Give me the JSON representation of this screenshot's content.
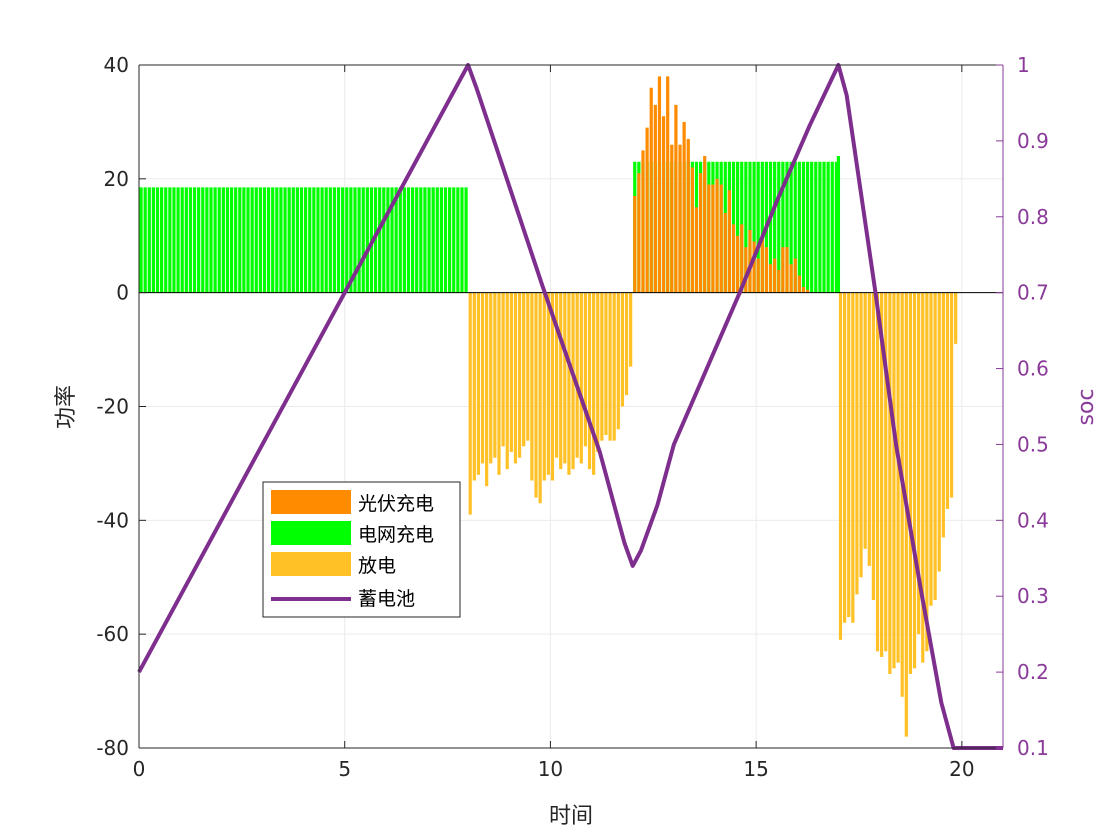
{
  "chart_data": {
    "type": "bar",
    "xlabel": "时间",
    "ylabel": "功率",
    "y2label": "soc",
    "xlim": [
      0,
      21
    ],
    "ylim": [
      -80,
      40
    ],
    "y2lim": [
      0.1,
      1.0
    ],
    "xticks": [
      "0",
      "5",
      "10",
      "15",
      "20"
    ],
    "xtick_values": [
      0,
      5,
      10,
      15,
      20
    ],
    "yticks": [
      "40",
      "20",
      "0",
      "-20",
      "-40",
      "-60",
      "-80"
    ],
    "ytick_values": [
      40,
      20,
      0,
      -20,
      -40,
      -60,
      -80
    ],
    "y2ticks": [
      "1",
      "0.9",
      "0.8",
      "0.7",
      "0.6",
      "0.5",
      "0.4",
      "0.3",
      "0.2",
      "0.1"
    ],
    "y2tick_values": [
      1.0,
      0.9,
      0.8,
      0.7,
      0.6,
      0.5,
      0.4,
      0.3,
      0.2,
      0.1
    ],
    "grid": true,
    "legend_position": "lower-left",
    "legend": [
      {
        "label": "光伏充电",
        "color": "#ff8c00",
        "kind": "bar"
      },
      {
        "label": "电网充电",
        "color": "#00ff00",
        "kind": "bar"
      },
      {
        "label": "放电",
        "color": "#ffc125",
        "kind": "bar"
      },
      {
        "label": "蓄电池",
        "color": "#7e2f8e",
        "kind": "line"
      }
    ],
    "series": [
      {
        "name": "电网充电",
        "color": "#00ff00",
        "segments": [
          {
            "x_start": 0.05,
            "x_end": 7.95,
            "value": 18.5
          },
          {
            "x_start": 12.05,
            "x_end": 16.95,
            "value": 23
          }
        ],
        "extra_points": [
          {
            "x": 17.0,
            "y": 24
          }
        ]
      },
      {
        "name": "光伏充电",
        "color": "#ff8c00",
        "points": [
          [
            12.05,
            17
          ],
          [
            12.15,
            21
          ],
          [
            12.25,
            25
          ],
          [
            12.35,
            29
          ],
          [
            12.45,
            36
          ],
          [
            12.55,
            33
          ],
          [
            12.65,
            38
          ],
          [
            12.75,
            31
          ],
          [
            12.85,
            38
          ],
          [
            12.95,
            26
          ],
          [
            13.05,
            33
          ],
          [
            13.15,
            26
          ],
          [
            13.25,
            30
          ],
          [
            13.35,
            27
          ],
          [
            13.45,
            22
          ],
          [
            13.55,
            15
          ],
          [
            13.65,
            21
          ],
          [
            13.75,
            24
          ],
          [
            13.85,
            19
          ],
          [
            13.95,
            19
          ],
          [
            14.05,
            20
          ],
          [
            14.15,
            19
          ],
          [
            14.25,
            14
          ],
          [
            14.35,
            18
          ],
          [
            14.45,
            12
          ],
          [
            14.55,
            10
          ],
          [
            14.65,
            12
          ],
          [
            14.75,
            8
          ],
          [
            14.85,
            11
          ],
          [
            14.95,
            9
          ],
          [
            15.05,
            6
          ],
          [
            15.15,
            10
          ],
          [
            15.25,
            8
          ],
          [
            15.35,
            5
          ],
          [
            15.45,
            6
          ],
          [
            15.55,
            4
          ],
          [
            15.65,
            8
          ],
          [
            15.75,
            8
          ],
          [
            15.85,
            5
          ],
          [
            15.95,
            6
          ],
          [
            16.05,
            3
          ],
          [
            16.15,
            1
          ],
          [
            16.25,
            0.5
          ]
        ]
      },
      {
        "name": "放电",
        "color": "#ffc125",
        "points": [
          [
            8.05,
            -39
          ],
          [
            8.15,
            -33
          ],
          [
            8.25,
            -32
          ],
          [
            8.35,
            -30
          ],
          [
            8.45,
            -34
          ],
          [
            8.55,
            -30
          ],
          [
            8.65,
            -29
          ],
          [
            8.75,
            -32
          ],
          [
            8.85,
            -27
          ],
          [
            8.95,
            -31
          ],
          [
            9.05,
            -28
          ],
          [
            9.15,
            -30
          ],
          [
            9.25,
            -29
          ],
          [
            9.35,
            -27
          ],
          [
            9.45,
            -26
          ],
          [
            9.55,
            -33
          ],
          [
            9.65,
            -36
          ],
          [
            9.75,
            -37
          ],
          [
            9.85,
            -33
          ],
          [
            9.95,
            -32
          ],
          [
            10.05,
            -33
          ],
          [
            10.15,
            -29
          ],
          [
            10.25,
            -31
          ],
          [
            10.35,
            -30
          ],
          [
            10.45,
            -32
          ],
          [
            10.55,
            -31
          ],
          [
            10.65,
            -29
          ],
          [
            10.75,
            -30
          ],
          [
            10.85,
            -27
          ],
          [
            10.95,
            -31
          ],
          [
            11.05,
            -32
          ],
          [
            11.15,
            -28
          ],
          [
            11.25,
            -26
          ],
          [
            11.35,
            -25
          ],
          [
            11.45,
            -26
          ],
          [
            11.55,
            -26
          ],
          [
            11.65,
            -24
          ],
          [
            11.75,
            -20
          ],
          [
            11.85,
            -18
          ],
          [
            11.95,
            -13
          ]
        ],
        "points_b": [
          [
            17.05,
            -61
          ],
          [
            17.15,
            -58
          ],
          [
            17.25,
            -57
          ],
          [
            17.35,
            -58
          ],
          [
            17.45,
            -53
          ],
          [
            17.55,
            -50
          ],
          [
            17.65,
            -45
          ],
          [
            17.75,
            -48
          ],
          [
            17.85,
            -54
          ],
          [
            17.95,
            -63
          ],
          [
            18.05,
            -64
          ],
          [
            18.15,
            -63
          ],
          [
            18.25,
            -67
          ],
          [
            18.35,
            -66
          ],
          [
            18.45,
            -65
          ],
          [
            18.55,
            -71
          ],
          [
            18.65,
            -78
          ],
          [
            18.75,
            -67
          ],
          [
            18.85,
            -66
          ],
          [
            18.95,
            -60
          ],
          [
            19.05,
            -65
          ],
          [
            19.15,
            -63
          ],
          [
            19.25,
            -55
          ],
          [
            19.35,
            -54
          ],
          [
            19.45,
            -49
          ],
          [
            19.55,
            -43
          ],
          [
            19.65,
            -38
          ],
          [
            19.75,
            -36
          ],
          [
            19.85,
            -9
          ]
        ]
      },
      {
        "name": "蓄电池",
        "color": "#7e2f8e",
        "axis": "right",
        "points": [
          [
            0,
            0.2
          ],
          [
            8,
            1.0
          ],
          [
            8.2,
            0.97
          ],
          [
            9.0,
            0.84
          ],
          [
            9.8,
            0.71
          ],
          [
            10.5,
            0.6
          ],
          [
            11.2,
            0.49
          ],
          [
            11.8,
            0.37
          ],
          [
            12.0,
            0.34
          ],
          [
            12.2,
            0.36
          ],
          [
            12.6,
            0.42
          ],
          [
            13.0,
            0.5
          ],
          [
            13.8,
            0.6
          ],
          [
            14.6,
            0.7
          ],
          [
            15.5,
            0.82
          ],
          [
            16.3,
            0.92
          ],
          [
            17.0,
            1.0
          ],
          [
            17.2,
            0.96
          ],
          [
            17.9,
            0.7
          ],
          [
            18.4,
            0.5
          ],
          [
            19.0,
            0.31
          ],
          [
            19.5,
            0.16
          ],
          [
            19.8,
            0.1
          ],
          [
            21.0,
            0.1
          ]
        ]
      }
    ]
  }
}
